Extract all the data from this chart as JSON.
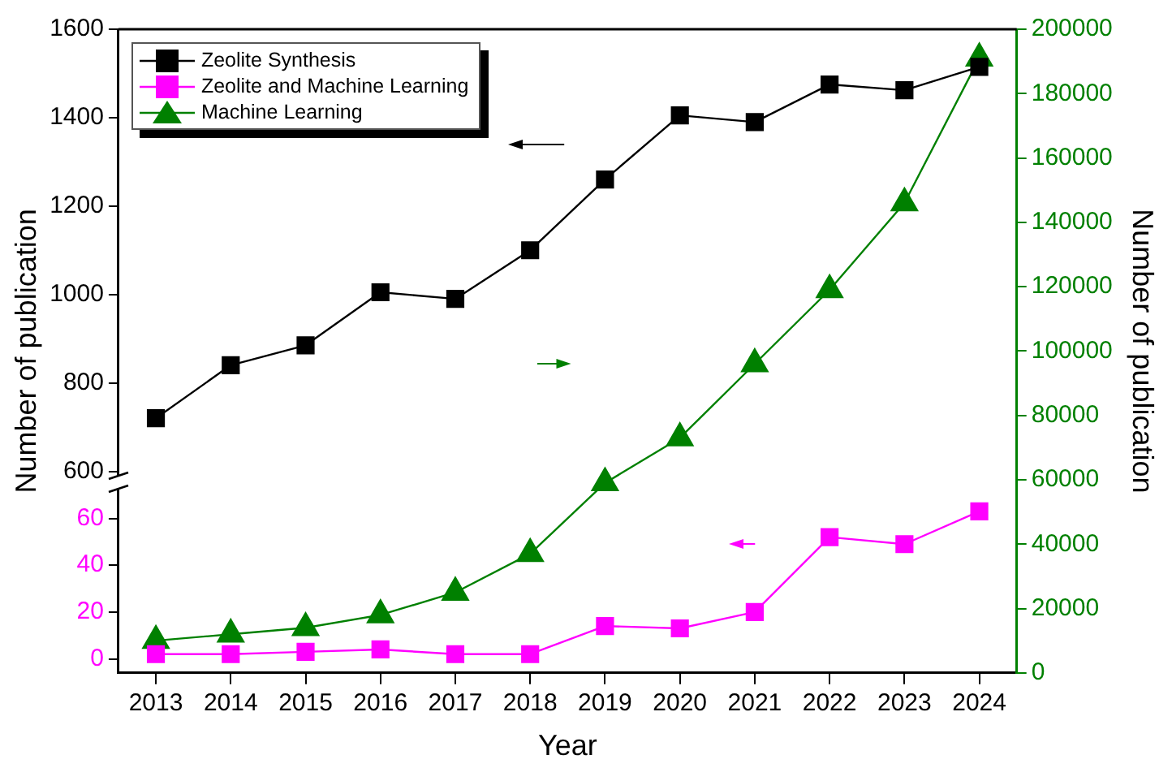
{
  "chart_data": {
    "type": "line",
    "categories": [
      "2013",
      "2014",
      "2015",
      "2016",
      "2017",
      "2018",
      "2019",
      "2020",
      "2021",
      "2022",
      "2023",
      "2024"
    ],
    "xlabel": "Year",
    "ylabel": "Number of publication",
    "y2label": "Number of publication",
    "legend": "top left",
    "grid": false,
    "series": [
      {
        "name": "Zeolite Synthesis",
        "color": "#000000",
        "marker": "square",
        "values": [
          720,
          840,
          885,
          1005,
          990,
          1100,
          1260,
          1405,
          1390,
          1475,
          1462,
          1515
        ]
      },
      {
        "name": "Zeolite and Machine Learning",
        "color": "#ff00ff",
        "marker": "square",
        "axis": "y3",
        "values": [
          2,
          2,
          3,
          4,
          2,
          2,
          14,
          13,
          20,
          52,
          49,
          63
        ]
      },
      {
        "name": "Machine Learning",
        "color": "#008000",
        "marker": "triangle",
        "axis": "y2",
        "values": [
          10000,
          12000,
          14000,
          18000,
          25000,
          37000,
          59000,
          73000,
          96000,
          119000,
          146000,
          191000
        ]
      }
    ],
    "ylim": [
      144,
      1600
    ],
    "yticks": [
      600,
      800,
      1000,
      1200,
      1400,
      1600
    ],
    "y3lim": [
      -6,
      269
    ],
    "y3ticks": [
      0,
      20,
      40,
      60
    ],
    "y2lim": [
      0,
      200000
    ],
    "y2ticks": [
      0,
      20000,
      40000,
      60000,
      80000,
      100000,
      120000,
      140000,
      160000,
      180000,
      200000
    ]
  }
}
